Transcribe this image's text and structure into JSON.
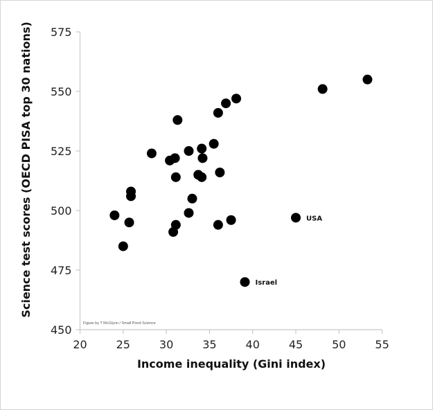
{
  "chart_data": {
    "type": "scatter",
    "title": "",
    "xlabel": "Income inequality (Gini index)",
    "ylabel": "Science test scores (OECD PISA top 30 nations)",
    "xlim": [
      20,
      55
    ],
    "ylim": [
      450,
      575
    ],
    "x_ticks": [
      20,
      25,
      30,
      35,
      40,
      45,
      50,
      55
    ],
    "y_ticks": [
      450,
      475,
      500,
      525,
      550,
      575
    ],
    "grid": false,
    "legend": null,
    "credit": "Figure by T McGlynn / Small Pond Science",
    "annotations": [
      {
        "label": "USA",
        "x": 45.0,
        "y": 497
      },
      {
        "label": "Israel",
        "x": 39.1,
        "y": 470
      }
    ],
    "points": [
      {
        "x": 24.0,
        "y": 498
      },
      {
        "x": 25.0,
        "y": 485
      },
      {
        "x": 25.7,
        "y": 495
      },
      {
        "x": 25.9,
        "y": 508
      },
      {
        "x": 25.9,
        "y": 506
      },
      {
        "x": 28.3,
        "y": 524
      },
      {
        "x": 30.4,
        "y": 521
      },
      {
        "x": 31.0,
        "y": 522
      },
      {
        "x": 31.1,
        "y": 514
      },
      {
        "x": 31.3,
        "y": 538
      },
      {
        "x": 31.1,
        "y": 494
      },
      {
        "x": 30.8,
        "y": 491
      },
      {
        "x": 32.6,
        "y": 525
      },
      {
        "x": 32.6,
        "y": 499
      },
      {
        "x": 33.0,
        "y": 505
      },
      {
        "x": 33.7,
        "y": 515
      },
      {
        "x": 34.1,
        "y": 526
      },
      {
        "x": 34.1,
        "y": 514
      },
      {
        "x": 34.2,
        "y": 522
      },
      {
        "x": 35.5,
        "y": 528
      },
      {
        "x": 36.0,
        "y": 541
      },
      {
        "x": 36.2,
        "y": 516
      },
      {
        "x": 36.0,
        "y": 494
      },
      {
        "x": 36.9,
        "y": 545
      },
      {
        "x": 37.5,
        "y": 496
      },
      {
        "x": 38.1,
        "y": 547
      },
      {
        "x": 39.1,
        "y": 470,
        "label": "Israel"
      },
      {
        "x": 45.0,
        "y": 497,
        "label": "USA"
      },
      {
        "x": 48.1,
        "y": 551
      },
      {
        "x": 53.3,
        "y": 555
      }
    ]
  },
  "style": {
    "dot_color": "#000000",
    "axis_color": "#c8c8c8",
    "border_color": "#d4d4d4"
  }
}
